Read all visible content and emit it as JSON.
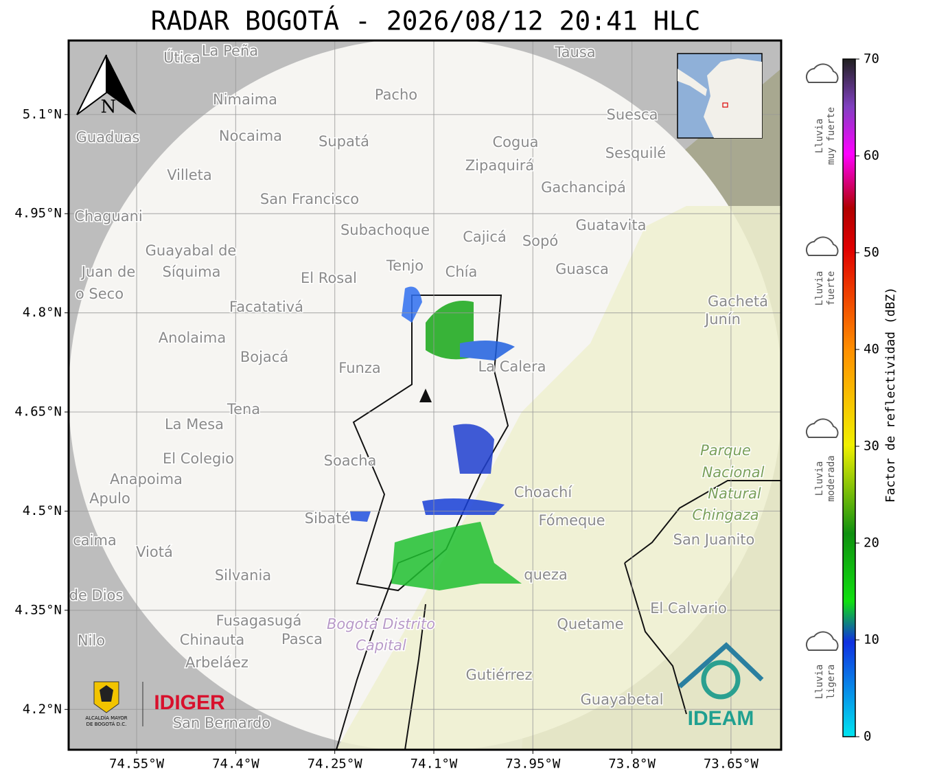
{
  "map": {
    "title": "RADAR BOGOTÁ - 2026/08/12 20:41 HLC",
    "lon_range": [
      -74.653,
      -73.574
    ],
    "lat_range": [
      4.139,
      5.212
    ],
    "lon_ticks": [
      {
        "value": -74.55,
        "label": "74.55°W"
      },
      {
        "value": -74.4,
        "label": "74.4°W"
      },
      {
        "value": -74.25,
        "label": "74.25°W"
      },
      {
        "value": -74.1,
        "label": "74.1°W"
      },
      {
        "value": -73.95,
        "label": "73.95°W"
      },
      {
        "value": -73.8,
        "label": "73.8°W"
      },
      {
        "value": -73.65,
        "label": "73.65°W"
      }
    ],
    "lat_ticks": [
      {
        "value": 5.1,
        "label": "5.1°N"
      },
      {
        "value": 4.95,
        "label": "4.95°N"
      },
      {
        "value": 4.8,
        "label": "4.8°N"
      },
      {
        "value": 4.65,
        "label": "4.65°N"
      },
      {
        "value": 4.5,
        "label": "4.5°N"
      },
      {
        "value": 4.35,
        "label": "4.35°N"
      },
      {
        "value": 4.2,
        "label": "4.2°N"
      }
    ],
    "north": "N",
    "places": [
      "Útica",
      "La Peña",
      "Tausa",
      "Pacho",
      "Nimaima",
      "Guaduas",
      "Nocaima",
      "Supatá",
      "Cogua",
      "Suesca",
      "Sesquilé",
      "Villeta",
      "Zipaquirá",
      "Gachancipá",
      "San Francisco",
      "Chaguani",
      "Subachoque",
      "Guatavita",
      "Cajicá",
      "Sopó",
      "Guayabal de",
      "Síquima",
      "Tenjo",
      "Chía",
      "Guasca",
      "Juan de",
      "o Seco",
      "El Rosal",
      "Facatativá",
      "Gachetá",
      "Junín",
      "Anolaima",
      "Bojacá",
      "Funza",
      "La Calera",
      "Tena",
      "La Mesa",
      "Parque",
      "Nacional",
      "Natural",
      "Chingaza",
      "Soacha",
      "El Colegio",
      "Anapoima",
      "Apulo",
      "Choachí",
      "Sibaté",
      "Fómeque",
      "San Juanito",
      "caima",
      "Viotá",
      "Silvania",
      "queza",
      "de Dios",
      "El Calvario",
      "Fusagasugá",
      "Quetame",
      "Bogotá Distrito",
      "Capital",
      "Nilo",
      "Chinauta",
      "Pasca",
      "Arbeláez",
      "Gutiérrez",
      "Guayabetal",
      "San Bernardo"
    ],
    "logos": {
      "alcaldia": [
        "ALCALDÍA MAYOR",
        "DE BOGOTÁ D.C."
      ],
      "idiger": "IDIGER",
      "ideam": "IDEAM"
    },
    "colorbar": {
      "label": "Factor de reflectividad (dBZ)",
      "range": [
        0,
        70
      ],
      "ticks": [
        0,
        10,
        20,
        30,
        40,
        50,
        60,
        70
      ],
      "categories": [
        [
          "Lluvia",
          "muy fuerte"
        ],
        [
          "Lluvia",
          "fuerte"
        ],
        [
          "Lluvia",
          "moderada"
        ],
        [
          "Lluvia",
          "ligera"
        ]
      ]
    }
  }
}
